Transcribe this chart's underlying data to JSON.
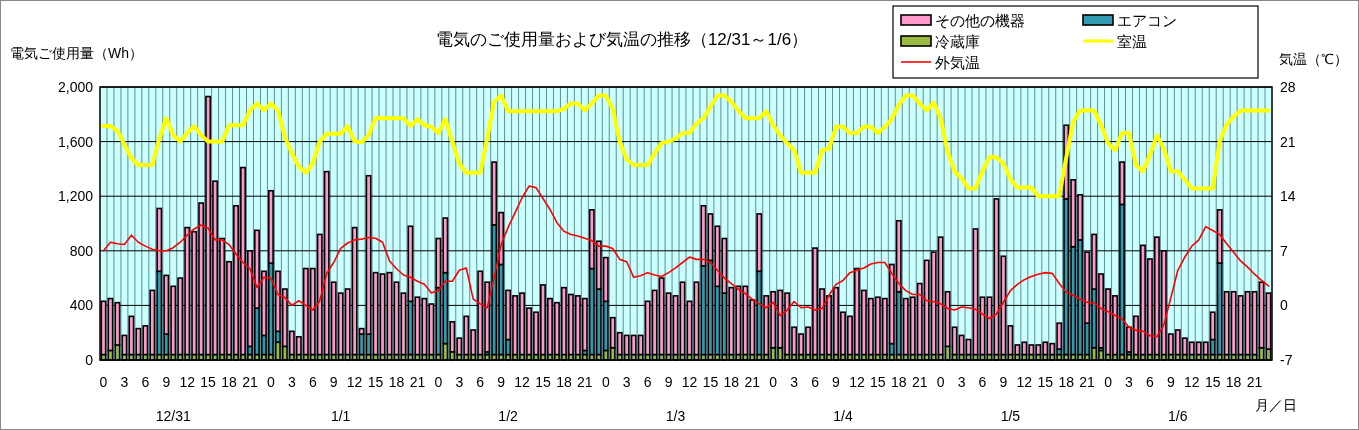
{
  "chart_data": {
    "type": "bar",
    "stacked": true,
    "grid": true,
    "legend": "top right",
    "title": "電気のご使用量および気温の推移（12/31～1/6）",
    "ylabel": "電気ご使用量（Wh）",
    "y2label": "気温（℃）",
    "xlabel": "月／日",
    "annotations": [
      "12/31",
      "1/1",
      "1/2",
      "1/3",
      "1/4",
      "1/5",
      "1/6"
    ],
    "categories": [
      "0",
      null,
      null,
      "3",
      null,
      null,
      "6",
      null,
      null,
      "9",
      null,
      null,
      "12",
      null,
      null,
      "15",
      null,
      null,
      "18",
      null,
      null,
      "21",
      null,
      null,
      "0",
      null,
      null,
      "3",
      null,
      null,
      "6",
      null,
      null,
      "9",
      null,
      null,
      "12",
      null,
      null,
      "15",
      null,
      null,
      "18",
      null,
      null,
      "21",
      null,
      null,
      "0",
      null,
      null,
      "3",
      null,
      null,
      "6",
      null,
      null,
      "9",
      null,
      null,
      "12",
      null,
      null,
      "15",
      null,
      null,
      "18",
      null,
      null,
      "21",
      null,
      null,
      "0",
      null,
      null,
      "3",
      null,
      null,
      "6",
      null,
      null,
      "9",
      null,
      null,
      "12",
      null,
      null,
      "15",
      null,
      null,
      "18",
      null,
      null,
      "21",
      null,
      null,
      "0",
      null,
      null,
      "3",
      null,
      null,
      "6",
      null,
      null,
      "9",
      null,
      null,
      "12",
      null,
      null,
      "15",
      null,
      null,
      "18",
      null,
      null,
      "21",
      null,
      null,
      "0",
      null,
      null,
      "3",
      null,
      null,
      "6",
      null,
      null,
      "9",
      null,
      null,
      "12",
      null,
      null,
      "15",
      null,
      null,
      "18",
      null,
      null,
      "21",
      null,
      null,
      "0",
      null,
      null,
      "3",
      null,
      null,
      "6",
      null,
      null,
      "9",
      null,
      null,
      "12",
      null,
      null,
      "15",
      null,
      null,
      "18",
      null,
      null,
      "21",
      null,
      null
    ],
    "ylim": [
      0,
      2000
    ],
    "yticks": [
      0,
      400,
      800,
      {
        "value": 1200,
        "label": "1,200"
      },
      {
        "value": 1600,
        "label": "1,600"
      },
      {
        "value": 2000,
        "label": "2,000"
      }
    ],
    "y2lim": [
      -7,
      28
    ],
    "y2ticks": [
      -7,
      0,
      7,
      14,
      21,
      28
    ],
    "series": [
      {
        "name": "冷蔵庫",
        "color": "#99bb44",
        "values": [
          40,
          70,
          110,
          40,
          40,
          40,
          40,
          40,
          40,
          40,
          40,
          40,
          40,
          40,
          40,
          40,
          40,
          40,
          40,
          40,
          40,
          40,
          40,
          40,
          40,
          130,
          100,
          40,
          40,
          40,
          40,
          40,
          40,
          40,
          40,
          40,
          40,
          40,
          40,
          40,
          40,
          40,
          40,
          40,
          40,
          40,
          40,
          40,
          40,
          120,
          60,
          40,
          40,
          40,
          40,
          40,
          40,
          40,
          40,
          40,
          40,
          40,
          40,
          40,
          40,
          40,
          40,
          40,
          40,
          40,
          40,
          40,
          70,
          90,
          40,
          40,
          40,
          40,
          40,
          40,
          40,
          40,
          40,
          40,
          40,
          40,
          40,
          40,
          40,
          40,
          40,
          40,
          40,
          40,
          40,
          40,
          90,
          90,
          40,
          40,
          40,
          40,
          40,
          40,
          40,
          40,
          40,
          40,
          40,
          40,
          40,
          40,
          40,
          40,
          40,
          40,
          40,
          40,
          40,
          40,
          40,
          100,
          40,
          40,
          40,
          40,
          40,
          40,
          40,
          40,
          40,
          40,
          40,
          40,
          40,
          40,
          40,
          40,
          40,
          40,
          40,
          40,
          90,
          70,
          40,
          40,
          40,
          40,
          40,
          40,
          40,
          40,
          40,
          40,
          40,
          40,
          40,
          40,
          40,
          40,
          40,
          40,
          40,
          40,
          40,
          40,
          90,
          80
        ]
      },
      {
        "name": "エアコン",
        "color": "#3399b3",
        "values": [
          0,
          0,
          0,
          0,
          0,
          0,
          0,
          0,
          610,
          150,
          0,
          0,
          0,
          0,
          0,
          0,
          0,
          0,
          0,
          0,
          0,
          60,
          340,
          140,
          670,
          80,
          0,
          0,
          0,
          0,
          0,
          0,
          0,
          0,
          0,
          0,
          0,
          150,
          150,
          0,
          0,
          0,
          0,
          0,
          390,
          0,
          0,
          0,
          490,
          520,
          0,
          0,
          0,
          0,
          0,
          20,
          950,
          660,
          110,
          0,
          0,
          0,
          0,
          0,
          0,
          0,
          0,
          0,
          0,
          30,
          630,
          480,
          360,
          0,
          0,
          0,
          0,
          0,
          0,
          0,
          0,
          0,
          0,
          0,
          0,
          0,
          650,
          690,
          500,
          450,
          0,
          0,
          0,
          0,
          610,
          0,
          0,
          0,
          0,
          0,
          0,
          0,
          0,
          0,
          0,
          0,
          0,
          0,
          0,
          0,
          0,
          0,
          0,
          80,
          460,
          0,
          0,
          0,
          0,
          0,
          0,
          0,
          0,
          0,
          0,
          0,
          0,
          0,
          0,
          0,
          0,
          0,
          0,
          0,
          0,
          0,
          0,
          40,
          1140,
          790,
          840,
          230,
          430,
          20,
          0,
          0,
          1100,
          20,
          0,
          0,
          0,
          0,
          0,
          0,
          0,
          0,
          0,
          0,
          0,
          110,
          670,
          0,
          0,
          0,
          0,
          0,
          0,
          0
        ]
      },
      {
        "name": "その他の機器",
        "color": "#ff99cc",
        "values": [
          390,
          380,
          310,
          140,
          280,
          190,
          210,
          470,
          460,
          430,
          500,
          560,
          930,
          900,
          1110,
          1890,
          1270,
          850,
          680,
          1090,
          1370,
          700,
          570,
          470,
          530,
          440,
          420,
          170,
          130,
          630,
          630,
          880,
          1340,
          530,
          450,
          480,
          930,
          40,
          1160,
          600,
          590,
          600,
          530,
          450,
          550,
          420,
          410,
          370,
          360,
          400,
          220,
          120,
          280,
          180,
          610,
          510,
          460,
          380,
          360,
          430,
          450,
          340,
          310,
          510,
          410,
          380,
          490,
          440,
          430,
          380,
          430,
          350,
          320,
          220,
          160,
          140,
          140,
          140,
          390,
          470,
          560,
          450,
          430,
          530,
          390,
          530,
          440,
          340,
          440,
          400,
          490,
          500,
          500,
          400,
          420,
          430,
          410,
          420,
          450,
          200,
          150,
          200,
          780,
          480,
          430,
          490,
          310,
          280,
          630,
          470,
          410,
          420,
          410,
          580,
          520,
          410,
          420,
          520,
          690,
          750,
          860,
          400,
          200,
          140,
          110,
          920,
          420,
          420,
          1140,
          720,
          210,
          70,
          90,
          70,
          70,
          90,
          80,
          190,
          540,
          490,
          330,
          520,
          400,
          540,
          480,
          430,
          310,
          180,
          280,
          800,
          700,
          860,
          760,
          150,
          180,
          120,
          90,
          90,
          90,
          200,
          390,
          460,
          460,
          430,
          460,
          460,
          480,
          410
        ]
      },
      {
        "name": "室温",
        "type": "line",
        "axis": "y2",
        "color": "#ffff00",
        "values": [
          23.0,
          23.0,
          22.4,
          20.6,
          18.9,
          18.0,
          18.0,
          18.0,
          21.4,
          24.0,
          21.8,
          21.0,
          22.1,
          23.0,
          21.8,
          21.0,
          21.0,
          21.0,
          23.1,
          23.1,
          23.1,
          25.0,
          25.9,
          25.0,
          25.9,
          25.0,
          21.6,
          19.5,
          17.8,
          17.0,
          18.2,
          21.0,
          22.0,
          22.0,
          22.0,
          23.0,
          21.0,
          20.9,
          21.8,
          24.0,
          24.0,
          24.0,
          24.0,
          24.0,
          23.0,
          23.9,
          23.1,
          22.9,
          22.1,
          23.9,
          21.0,
          18.2,
          17.0,
          17.0,
          17.0,
          21.4,
          26.1,
          26.9,
          24.9,
          24.9,
          24.9,
          24.9,
          24.9,
          24.9,
          24.9,
          24.9,
          25.2,
          25.9,
          25.9,
          25.0,
          25.9,
          26.9,
          26.9,
          25.2,
          21.0,
          18.7,
          18.0,
          18.0,
          18.0,
          19.5,
          20.8,
          21.0,
          21.4,
          22.1,
          22.1,
          23.3,
          24.0,
          25.5,
          26.9,
          26.9,
          26.1,
          25.0,
          24.0,
          24.0,
          24.0,
          24.9,
          23.1,
          21.8,
          20.8,
          19.9,
          17.0,
          17.0,
          17.0,
          19.9,
          20.1,
          22.9,
          22.9,
          22.1,
          22.1,
          22.9,
          22.9,
          22.1,
          22.9,
          23.9,
          25.7,
          26.9,
          26.9,
          25.9,
          25.0,
          26.0,
          24.0,
          19.7,
          17.2,
          16.3,
          15.0,
          15.0,
          17.2,
          19.0,
          19.0,
          18.2,
          16.2,
          15.1,
          15.1,
          15.1,
          14.0,
          14.0,
          14.0,
          14.0,
          18.9,
          23.5,
          25.0,
          25.0,
          25.0,
          23.1,
          20.8,
          19.9,
          22.1,
          22.1,
          18.0,
          17.2,
          19.3,
          21.8,
          20.1,
          17.2,
          17.2,
          16.1,
          15.0,
          15.0,
          15.0,
          15.0,
          21.0,
          23.2,
          24.2,
          25.0,
          25.0,
          25.0,
          25.0,
          25.0
        ]
      },
      {
        "name": "外気温",
        "type": "line",
        "axis": "y2",
        "color": "#ff0000",
        "values": [
          7.0,
          8.1,
          7.9,
          7.8,
          9.0,
          8.1,
          7.6,
          7.2,
          7.0,
          7.0,
          7.4,
          8.1,
          9.0,
          9.8,
          10.3,
          9.9,
          8.4,
          8.4,
          7.8,
          6.6,
          5.5,
          4.7,
          2.3,
          3.6,
          3.5,
          1.4,
          1.0,
          0.0,
          0.6,
          0.0,
          -0.6,
          0.6,
          4.1,
          5.5,
          7.3,
          8.0,
          8.4,
          8.5,
          8.7,
          8.6,
          8.1,
          5.7,
          4.7,
          3.9,
          3.6,
          3.1,
          2.7,
          1.6,
          1.9,
          3.1,
          3.1,
          4.5,
          4.8,
          0.8,
          0.2,
          -0.3,
          3.6,
          7.8,
          10.0,
          11.9,
          13.8,
          15.3,
          15.1,
          13.7,
          12.3,
          10.6,
          9.5,
          9.1,
          8.9,
          8.6,
          8.3,
          7.6,
          7.6,
          7.3,
          5.9,
          5.6,
          3.6,
          3.8,
          4.2,
          3.9,
          3.7,
          4.2,
          4.8,
          5.5,
          6.2,
          5.9,
          5.9,
          5.5,
          4.5,
          3.5,
          2.8,
          2.1,
          1.5,
          0.8,
          0.2,
          -0.3,
          0.4,
          -1.3,
          -0.6,
          0.5,
          -0.3,
          -0.2,
          -0.6,
          -0.4,
          1.3,
          2.7,
          3.2,
          4.2,
          4.5,
          4.8,
          5.3,
          5.5,
          5.5,
          4.1,
          2.8,
          1.9,
          1.4,
          1.4,
          0.6,
          0.5,
          0.2,
          -0.4,
          -0.6,
          -0.2,
          -0.3,
          -0.5,
          -1.1,
          -1.7,
          -1.1,
          0.4,
          1.9,
          2.7,
          3.3,
          3.7,
          4.0,
          4.2,
          4.1,
          2.8,
          1.7,
          1.3,
          0.8,
          0.4,
          0.3,
          -0.4,
          -0.8,
          -1.3,
          -1.7,
          -2.8,
          -3.2,
          -3.3,
          -3.9,
          -4.0,
          -2.5,
          1.0,
          4.5,
          6.2,
          7.6,
          8.4,
          10.1,
          9.6,
          9.1,
          7.9,
          6.8,
          5.7,
          4.9,
          4.0,
          3.2,
          2.5
        ]
      }
    ]
  }
}
